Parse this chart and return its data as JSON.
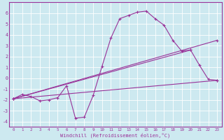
{
  "xlabel": "Windchill (Refroidissement éolien,°C)",
  "background_color": "#cde9f0",
  "line_color": "#993399",
  "xlim": [
    -0.5,
    23.5
  ],
  "ylim": [
    -4.5,
    7.0
  ],
  "yticks": [
    -4,
    -3,
    -2,
    -1,
    0,
    1,
    2,
    3,
    4,
    5,
    6
  ],
  "xticks": [
    0,
    1,
    2,
    3,
    4,
    5,
    6,
    7,
    8,
    9,
    10,
    11,
    12,
    13,
    14,
    15,
    16,
    17,
    18,
    19,
    20,
    21,
    22,
    23
  ],
  "series1_x": [
    0,
    1,
    2,
    3,
    4,
    5,
    6,
    7,
    8,
    9,
    10,
    11,
    12,
    13,
    14,
    15,
    16,
    17,
    18,
    19,
    20,
    21,
    22,
    23
  ],
  "series1_y": [
    -1.9,
    -1.5,
    -1.7,
    -2.1,
    -2.0,
    -1.8,
    -0.7,
    -3.7,
    -3.6,
    -1.6,
    1.1,
    3.7,
    5.5,
    5.8,
    6.1,
    6.2,
    5.5,
    4.9,
    3.5,
    2.5,
    2.6,
    1.2,
    -0.1,
    -0.2
  ],
  "line2_x": [
    0,
    23
  ],
  "line2_y": [
    -1.9,
    -0.2
  ],
  "line3_x": [
    0,
    20
  ],
  "line3_y": [
    -1.9,
    2.6
  ],
  "line4_x": [
    0,
    23
  ],
  "line4_y": [
    -1.9,
    3.5
  ]
}
